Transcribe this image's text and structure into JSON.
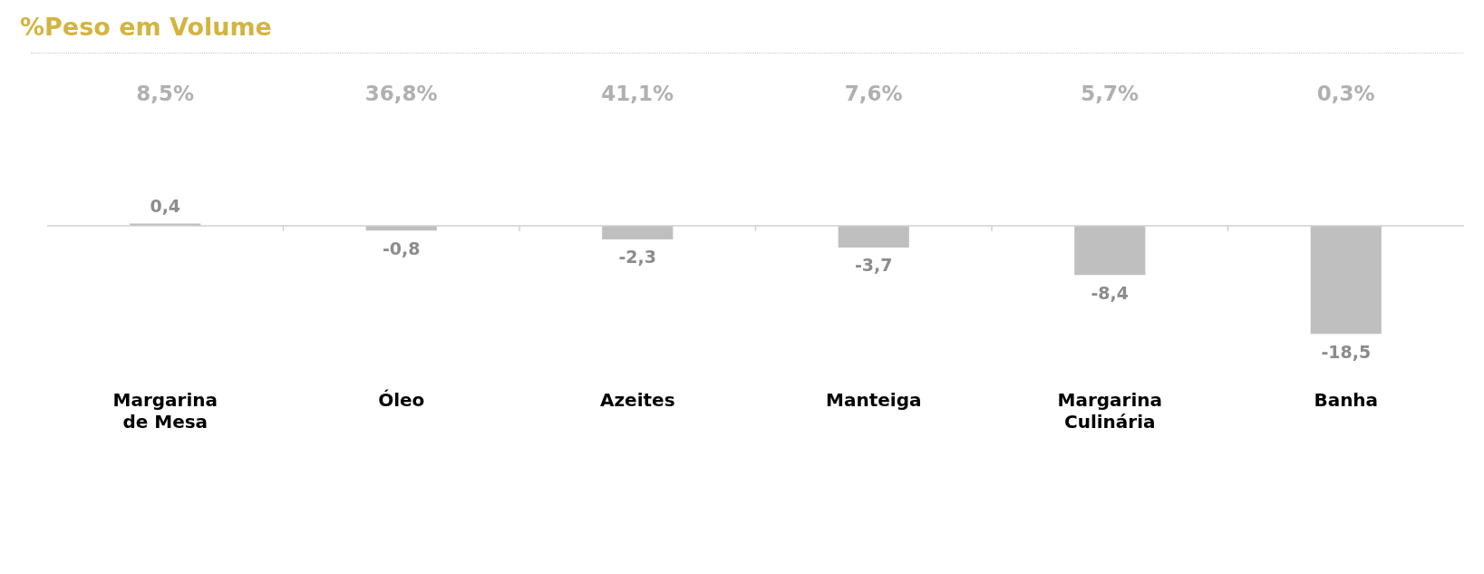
{
  "chart_data": {
    "type": "bar",
    "title": "%Peso em Volume",
    "categories": [
      "Margarina de Mesa",
      "Óleo",
      "Azeites",
      "Manteiga",
      "Margarina Culinária",
      "Banha"
    ],
    "values": [
      0.4,
      -0.8,
      -2.3,
      -3.7,
      -8.4,
      -18.5
    ],
    "value_labels": [
      "0,4",
      "-0,8",
      "-2,3",
      "-3,7",
      "-8,4",
      "-18,5"
    ],
    "color": "#bfbfbf",
    "annotations": [
      "8,5%",
      "36,8%",
      "41,1%",
      "7,6%",
      "5,7%",
      "0,3%"
    ],
    "legend": false,
    "grid": false
  }
}
